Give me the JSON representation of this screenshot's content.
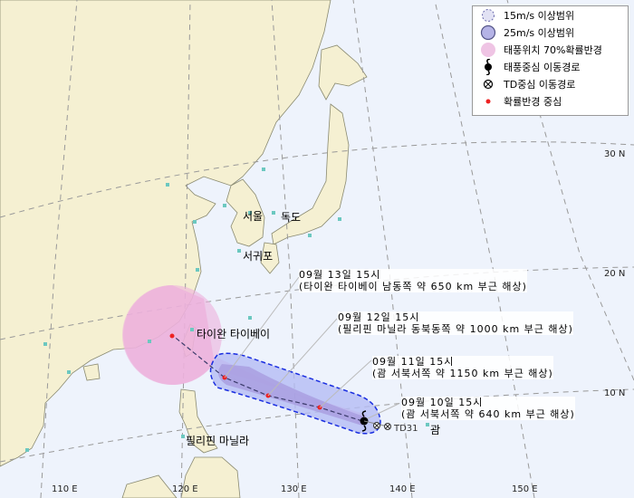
{
  "legend": {
    "items": [
      {
        "label": "15m/s 이상범위",
        "icon": "light-blue-dashed-circle",
        "color": "#e2e2f4"
      },
      {
        "label": "25m/s 이상범위",
        "icon": "purple-circle",
        "color": "#b5b3e6"
      },
      {
        "label": "태풍위치 70%확률반경",
        "icon": "pink-circle",
        "color": "#efc4e4"
      },
      {
        "label": "태풍중심 이동경로",
        "icon": "typhoon-icon",
        "color": "#000000"
      },
      {
        "label": "TD중심 이동경로",
        "icon": "circle-x-icon",
        "color": "#000000"
      },
      {
        "label": "확률반경 중심",
        "icon": "red-dot",
        "color": "#ee2222"
      }
    ]
  },
  "axes": {
    "lon": [
      "110 E",
      "120 E",
      "130 E",
      "140 E",
      "150 E"
    ],
    "lat": [
      "30 N",
      "20 N",
      "10 N"
    ]
  },
  "places": {
    "seoul": "서울",
    "dokdo": "독도",
    "seogwipo": "서귀포",
    "taipei": "타이완 타이베이",
    "manila": "필리핀 마닐라",
    "guam": "괌",
    "td": "TD31"
  },
  "forecasts": [
    {
      "time": "09월 10일 15시",
      "desc": "(괌 서북서쪽 약 640 km 부근 해상)"
    },
    {
      "time": "09월 11일 15시",
      "desc": "(괌 서북서쪽 약 1150 km 부근 해상)"
    },
    {
      "time": "09월 12일 15시",
      "desc": "(필리핀 마닐라 동북동쪽 약 1000 km 부근 해상)"
    },
    {
      "time": "09월 13일 15시",
      "desc": "(타이완 타이베이 남동쪽 약 650 km 부근 해상)"
    }
  ],
  "colors": {
    "land": "#f5f0d2",
    "sea": "#eef3fc",
    "track": "#3a3a6a",
    "zone15": "#b4bcf4",
    "zone25": "#a89ce0",
    "prob": "#ecb0dc"
  }
}
